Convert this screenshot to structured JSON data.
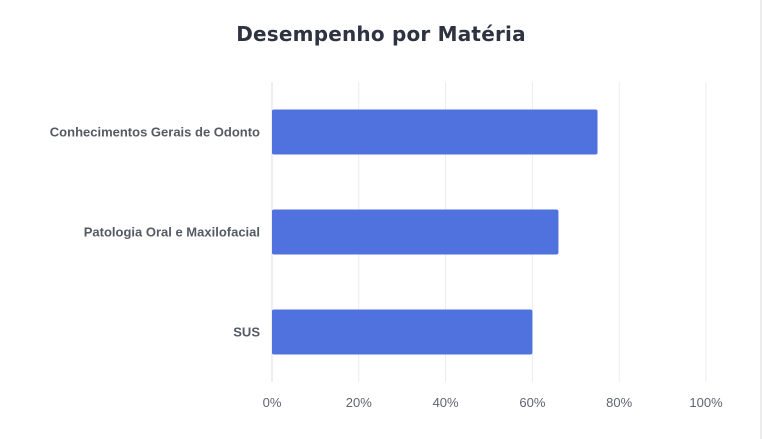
{
  "title": "Desempenho por Matéria",
  "chart_data": {
    "type": "bar",
    "orientation": "horizontal",
    "title": "Desempenho por Matéria",
    "categories": [
      "Conhecimentos Gerais de Odonto",
      "Patologia Oral e Maxilofacial",
      "SUS"
    ],
    "values": [
      75,
      66,
      60
    ],
    "unit": "%",
    "xlim": [
      0,
      100
    ],
    "ticks": [
      "0%",
      "20%",
      "40%",
      "60%",
      "80%",
      "100%"
    ],
    "grid": true,
    "legend": "none",
    "bar_color": "#4f72df"
  }
}
